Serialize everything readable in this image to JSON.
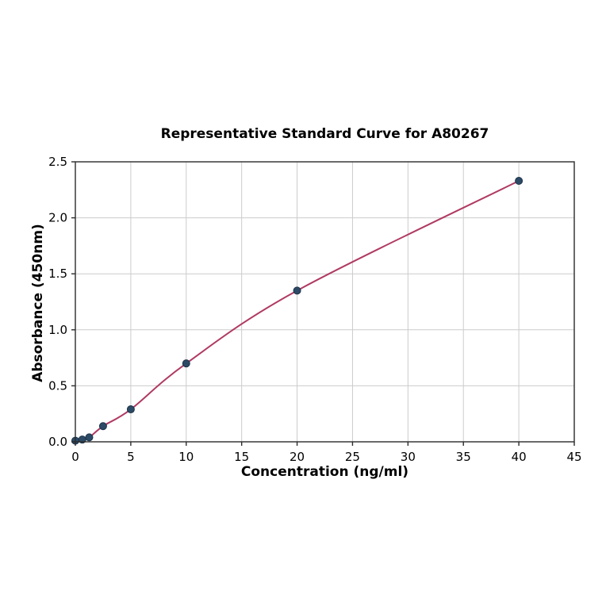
{
  "chart_data": {
    "type": "scatter",
    "title": "Representative Standard Curve for A80267",
    "xlabel": "Concentration (ng/ml)",
    "ylabel": "Absorbance (450nm)",
    "x": [
      0,
      0.625,
      1.25,
      2.5,
      5,
      10,
      20,
      40
    ],
    "y": [
      0.01,
      0.02,
      0.04,
      0.14,
      0.29,
      0.7,
      1.35,
      2.33
    ],
    "xlim": [
      0,
      45
    ],
    "ylim": [
      0,
      2.5
    ],
    "xticks": [
      0,
      5,
      10,
      15,
      20,
      25,
      30,
      35,
      40,
      45
    ],
    "yticks": [
      0.0,
      0.5,
      1.0,
      1.5,
      2.0,
      2.5
    ],
    "ytick_labels": [
      "0.0",
      "0.5",
      "1.0",
      "1.5",
      "2.0",
      "2.5"
    ],
    "grid": true,
    "legend": "none",
    "colors": {
      "curve": "#b03a63",
      "marker_fill": "#2c4a66",
      "marker_edge": "#1d3349",
      "grid": "#cccccc",
      "frame": "#2b2b2b",
      "background": "#ffffff"
    }
  }
}
